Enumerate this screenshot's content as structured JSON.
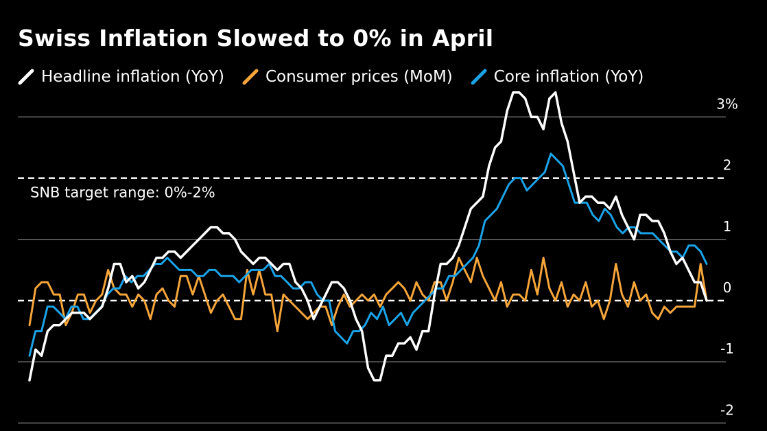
{
  "title": "Swiss Inflation Slowed to 0% in April",
  "legend": [
    {
      "label": "Headline inflation (YoY)",
      "color": "#ffffff",
      "icon": "diagonal-line-icon"
    },
    {
      "label": "Consumer prices (MoM)",
      "color": "#f5a53a",
      "icon": "diagonal-line-icon"
    },
    {
      "label": "Core inflation (YoY)",
      "color": "#1ba3e8",
      "icon": "diagonal-line-icon"
    }
  ],
  "chart_data": {
    "type": "line",
    "title": "Swiss Inflation Slowed to 0% in April",
    "ylim": [
      -2,
      3
    ],
    "yticks": [
      {
        "value": 3,
        "label": "3%"
      },
      {
        "value": 2,
        "label": "2"
      },
      {
        "value": 1,
        "label": "1"
      },
      {
        "value": 0,
        "label": "0"
      },
      {
        "value": -1,
        "label": "-1"
      },
      {
        "value": -2,
        "label": "-2"
      }
    ],
    "grid": true,
    "legend_position": "top-left",
    "annotation": {
      "label": "SNB target range: 0%-2%",
      "lines_at": [
        0,
        2
      ]
    },
    "series": [
      {
        "name": "Headline inflation (YoY)",
        "color": "#ffffff",
        "values": [
          -1.3,
          -0.8,
          -0.9,
          -0.5,
          -0.4,
          -0.4,
          -0.3,
          -0.2,
          -0.2,
          -0.2,
          -0.3,
          -0.2,
          -0.1,
          0.2,
          0.6,
          0.6,
          0.3,
          0.4,
          0.2,
          0.3,
          0.5,
          0.7,
          0.7,
          0.8,
          0.8,
          0.7,
          0.8,
          0.9,
          1.0,
          1.1,
          1.2,
          1.2,
          1.1,
          1.1,
          1.0,
          0.8,
          0.7,
          0.6,
          0.7,
          0.7,
          0.6,
          0.5,
          0.6,
          0.6,
          0.3,
          0.2,
          0.0,
          -0.3,
          -0.1,
          0.1,
          0.3,
          0.3,
          0.2,
          0.0,
          -0.3,
          -0.5,
          -1.1,
          -1.3,
          -1.3,
          -0.9,
          -0.9,
          -0.7,
          -0.7,
          -0.6,
          -0.8,
          -0.5,
          -0.5,
          0.1,
          0.6,
          0.6,
          0.7,
          0.9,
          1.2,
          1.5,
          1.6,
          1.7,
          2.2,
          2.5,
          2.6,
          3.1,
          3.4,
          3.4,
          3.3,
          3.0,
          3.0,
          2.8,
          3.3,
          3.4,
          2.9,
          2.6,
          2.1,
          1.6,
          1.7,
          1.7,
          1.6,
          1.6,
          1.5,
          1.7,
          1.4,
          1.2,
          1.0,
          1.4,
          1.4,
          1.3,
          1.3,
          1.1,
          0.8,
          0.6,
          0.7,
          0.5,
          0.3,
          0.3,
          0.0
        ]
      },
      {
        "name": "Consumer prices (MoM)",
        "color": "#f5a53a",
        "values": [
          -0.4,
          0.2,
          0.3,
          0.3,
          0.1,
          0.1,
          -0.4,
          -0.2,
          0.1,
          0.1,
          -0.2,
          0.0,
          0.1,
          0.5,
          0.2,
          0.1,
          0.1,
          -0.1,
          0.1,
          0.0,
          -0.3,
          0.1,
          0.2,
          0.0,
          -0.1,
          0.4,
          0.4,
          0.1,
          0.4,
          0.1,
          -0.2,
          0.0,
          0.1,
          -0.1,
          -0.3,
          -0.3,
          0.5,
          0.1,
          0.5,
          0.1,
          0.1,
          -0.5,
          0.1,
          0.0,
          -0.1,
          -0.2,
          -0.3,
          -0.2,
          -0.1,
          -0.1,
          -0.4,
          -0.1,
          0.1,
          -0.1,
          0.0,
          0.1,
          0.0,
          0.1,
          -0.1,
          0.1,
          0.2,
          0.3,
          0.2,
          0.0,
          0.3,
          0.1,
          0.0,
          0.3,
          0.3,
          0.0,
          0.3,
          0.7,
          0.5,
          0.3,
          0.7,
          0.4,
          0.2,
          0.0,
          0.3,
          -0.1,
          0.1,
          0.1,
          0.0,
          0.5,
          0.1,
          0.7,
          0.2,
          0.0,
          0.3,
          -0.1,
          0.1,
          0.0,
          0.3,
          -0.1,
          0.0,
          -0.3,
          0.0,
          0.6,
          0.1,
          -0.1,
          0.3,
          0.0,
          0.1,
          -0.2,
          -0.3,
          -0.1,
          -0.2,
          -0.1,
          -0.1,
          -0.1,
          -0.1,
          0.6,
          0.0
        ]
      },
      {
        "name": "Core inflation (YoY)",
        "color": "#1ba3e8",
        "values": [
          -0.9,
          -0.5,
          -0.5,
          -0.1,
          -0.1,
          -0.2,
          -0.3,
          -0.1,
          -0.1,
          -0.3,
          -0.3,
          -0.2,
          -0.1,
          0.1,
          0.2,
          0.2,
          0.4,
          0.3,
          0.4,
          0.4,
          0.5,
          0.6,
          0.6,
          0.7,
          0.6,
          0.5,
          0.5,
          0.5,
          0.4,
          0.4,
          0.5,
          0.5,
          0.4,
          0.4,
          0.4,
          0.3,
          0.4,
          0.5,
          0.5,
          0.5,
          0.6,
          0.4,
          0.4,
          0.3,
          0.2,
          0.2,
          0.3,
          0.3,
          0.1,
          0.0,
          0.0,
          -0.5,
          -0.6,
          -0.7,
          -0.5,
          -0.5,
          -0.4,
          -0.2,
          -0.3,
          -0.1,
          -0.4,
          -0.3,
          -0.2,
          -0.4,
          -0.2,
          -0.1,
          0.0,
          0.1,
          0.2,
          0.2,
          0.4,
          0.4,
          0.5,
          0.6,
          0.7,
          0.9,
          1.3,
          1.4,
          1.5,
          1.7,
          1.9,
          2.0,
          2.0,
          1.8,
          1.9,
          2.0,
          2.1,
          2.4,
          2.3,
          2.2,
          1.9,
          1.6,
          1.6,
          1.6,
          1.4,
          1.3,
          1.5,
          1.4,
          1.2,
          1.1,
          1.2,
          1.2,
          1.1,
          1.1,
          1.1,
          1.0,
          0.9,
          0.8,
          0.8,
          0.7,
          0.9,
          0.9,
          0.8,
          0.6
        ]
      }
    ]
  }
}
